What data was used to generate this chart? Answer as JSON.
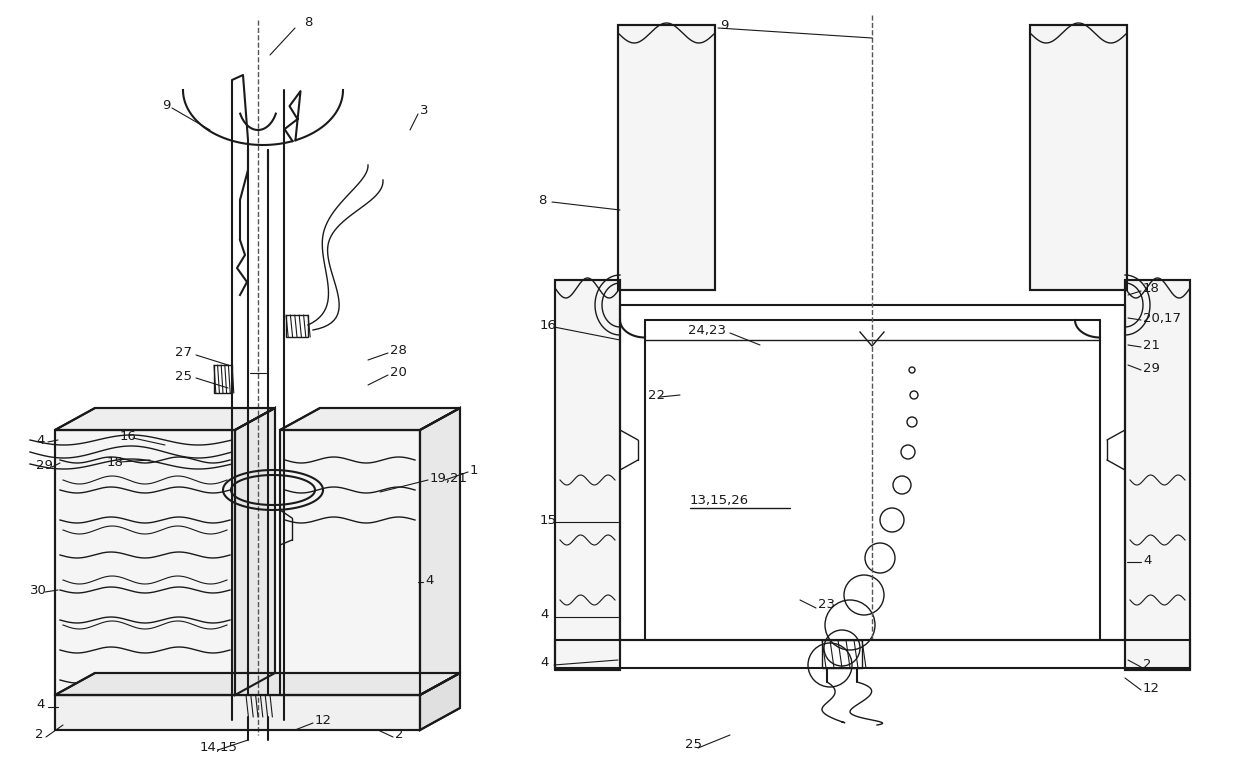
{
  "bg_color": "#ffffff",
  "line_color": "#1a1a1a",
  "figsize": [
    12.4,
    7.63
  ],
  "dpi": 100
}
